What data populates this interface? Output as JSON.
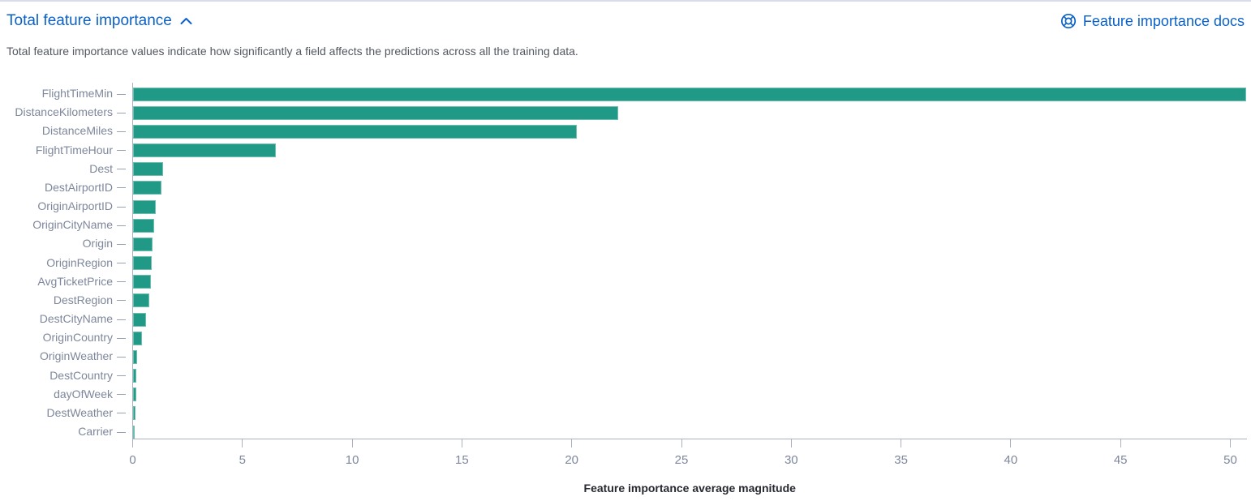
{
  "header": {
    "title": "Total feature importance",
    "docs_label": "Feature importance docs"
  },
  "description": "Total feature importance values indicate how significantly a field affects the predictions across all the training data.",
  "colors": {
    "link_blue": "#0a61c7",
    "bar_teal": "#209a86",
    "axis_label_gray": "#7e879b"
  },
  "chart_data": {
    "type": "bar",
    "orientation": "horizontal",
    "title": "",
    "xlabel": "Feature importance average magnitude",
    "ylabel": "",
    "xlim": [
      0,
      50.8
    ],
    "x_ticks": [
      0,
      5,
      10,
      15,
      20,
      25,
      30,
      35,
      40,
      45,
      50
    ],
    "grid": false,
    "legend": "none",
    "bar_color": "#209a86",
    "categories": [
      "FlightTimeMin",
      "DistanceKilometers",
      "DistanceMiles",
      "FlightTimeHour",
      "Dest",
      "DestAirportID",
      "OriginAirportID",
      "OriginCityName",
      "Origin",
      "OriginRegion",
      "AvgTicketPrice",
      "DestRegion",
      "DestCityName",
      "OriginCountry",
      "OriginWeather",
      "DestCountry",
      "dayOfWeek",
      "DestWeather",
      "Carrier"
    ],
    "values": [
      50.7,
      22.1,
      20.2,
      6.5,
      1.35,
      1.3,
      1.05,
      0.95,
      0.9,
      0.85,
      0.82,
      0.74,
      0.58,
      0.4,
      0.19,
      0.15,
      0.15,
      0.11,
      0.04
    ]
  }
}
